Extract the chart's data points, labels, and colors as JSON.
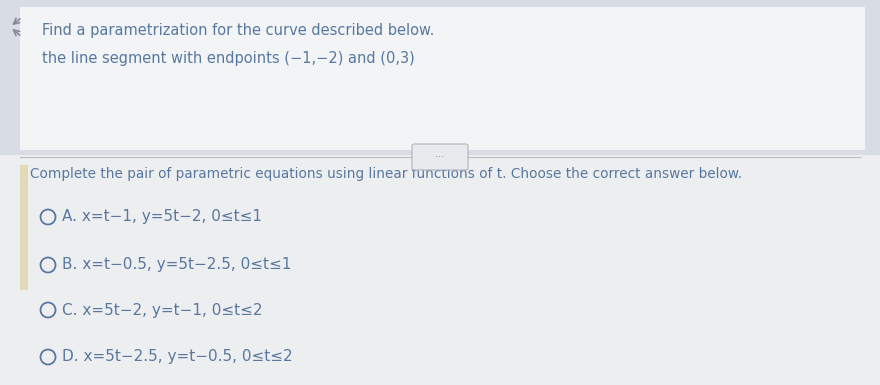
{
  "title_line1": "Find a parametrization for the curve described below.",
  "title_line2": "the line segment with endpoints (−1,−2) and (0,3)",
  "subtitle": "Complete the pair of parametric equations using linear functions of t. Choose the correct answer below.",
  "options": [
    {
      "label": "A.",
      "text": " x=t−1, y=5t−2, 0≤t≤1"
    },
    {
      "label": "B.",
      "text": " x=t−0.5, y=5t−2.5, 0≤t≤1"
    },
    {
      "label": "C.",
      "text": " x=5t−2, y=t−1, 0≤t≤2"
    },
    {
      "label": "D.",
      "text": " x=5t−2.5, y=t−0.5, 0≤t≤2"
    }
  ],
  "outer_bg": "#e8e8e8",
  "top_bg": "#dce3ea",
  "main_bg": "#eef0f3",
  "white_bg": "#f8f8f8",
  "left_accent_color": "#e2d9b8",
  "text_color": "#5878a0",
  "dark_text": "#4a6888",
  "title_fontsize": 10.5,
  "subtitle_fontsize": 9.8,
  "option_fontsize": 11.0,
  "fig_width": 8.8,
  "fig_height": 3.85
}
